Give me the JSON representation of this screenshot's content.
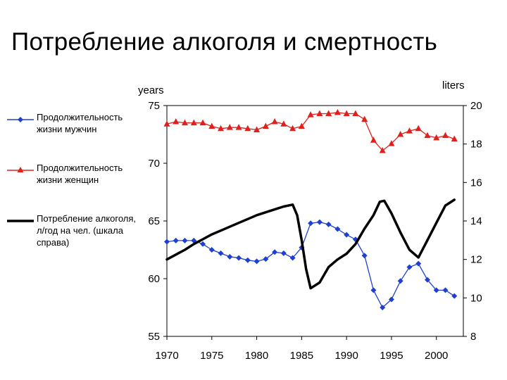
{
  "title": "Потребление алкоголя и смертность",
  "chart_data": {
    "type": "line",
    "ylabel_left": "years",
    "ylabel_right": "liters",
    "x_ticks": [
      1970,
      1975,
      1980,
      1985,
      1990,
      1995,
      2000
    ],
    "y_left_ticks": [
      55,
      60,
      65,
      70,
      75
    ],
    "y_right_ticks": [
      8,
      10,
      12,
      14,
      16,
      18,
      20
    ],
    "xlim": [
      1970,
      2003
    ],
    "ylim_left": [
      55,
      75
    ],
    "ylim_right": [
      8,
      20
    ],
    "grid": false,
    "legend_position": "left",
    "series": [
      {
        "name": "Продолжительность жизни мужчин",
        "axis": "left",
        "color": "#1f3fd0",
        "marker": "diamond",
        "x": [
          1970,
          1971,
          1972,
          1973,
          1974,
          1975,
          1976,
          1977,
          1978,
          1979,
          1980,
          1981,
          1982,
          1983,
          1984,
          1985,
          1986,
          1987,
          1988,
          1989,
          1990,
          1991,
          1992,
          1993,
          1994,
          1995,
          1996,
          1997,
          1998,
          1999,
          2000,
          2001,
          2002
        ],
        "values": [
          63.2,
          63.3,
          63.3,
          63.3,
          63.0,
          62.5,
          62.2,
          61.9,
          61.8,
          61.6,
          61.5,
          61.7,
          62.3,
          62.2,
          61.8,
          62.7,
          64.8,
          64.9,
          64.7,
          64.3,
          63.8,
          63.4,
          62.0,
          59.0,
          57.5,
          58.2,
          59.8,
          61.0,
          61.3,
          59.9,
          59.0,
          59.0,
          58.5
        ]
      },
      {
        "name": "Продолжительность жизни женщин",
        "axis": "left",
        "color": "#e0201c",
        "marker": "triangle",
        "x": [
          1970,
          1971,
          1972,
          1973,
          1974,
          1975,
          1976,
          1977,
          1978,
          1979,
          1980,
          1981,
          1982,
          1983,
          1984,
          1985,
          1986,
          1987,
          1988,
          1989,
          1990,
          1991,
          1992,
          1993,
          1994,
          1995,
          1996,
          1997,
          1998,
          1999,
          2000,
          2001,
          2002
        ],
        "values": [
          73.4,
          73.6,
          73.5,
          73.5,
          73.5,
          73.2,
          73.0,
          73.1,
          73.1,
          73.0,
          72.9,
          73.2,
          73.6,
          73.4,
          73.0,
          73.2,
          74.2,
          74.3,
          74.3,
          74.4,
          74.3,
          74.3,
          73.8,
          72.0,
          71.1,
          71.7,
          72.5,
          72.8,
          73.0,
          72.4,
          72.2,
          72.4,
          72.1
        ]
      },
      {
        "name": "Потребление алкоголя, л/год на чел. (шкала справа)",
        "axis": "right",
        "color": "#000000",
        "marker": "none",
        "x": [
          1970,
          1971,
          1972,
          1973,
          1974,
          1975,
          1976,
          1977,
          1978,
          1979,
          1980,
          1981,
          1982,
          1983,
          1984,
          1984.5,
          1985,
          1985.5,
          1986,
          1987,
          1988,
          1989,
          1990,
          1991,
          1992,
          1993,
          1993.7,
          1994.2,
          1995,
          1996,
          1997,
          1998,
          1999,
          2000,
          2001,
          2002
        ],
        "values": [
          12.0,
          12.25,
          12.5,
          12.8,
          13.05,
          13.3,
          13.5,
          13.7,
          13.9,
          14.1,
          14.3,
          14.45,
          14.6,
          14.75,
          14.85,
          14.3,
          13.0,
          11.5,
          10.5,
          10.8,
          11.6,
          12.0,
          12.3,
          12.8,
          13.6,
          14.3,
          15.0,
          15.05,
          14.4,
          13.4,
          12.5,
          12.1,
          13.0,
          13.9,
          14.8,
          15.1
        ]
      }
    ]
  }
}
